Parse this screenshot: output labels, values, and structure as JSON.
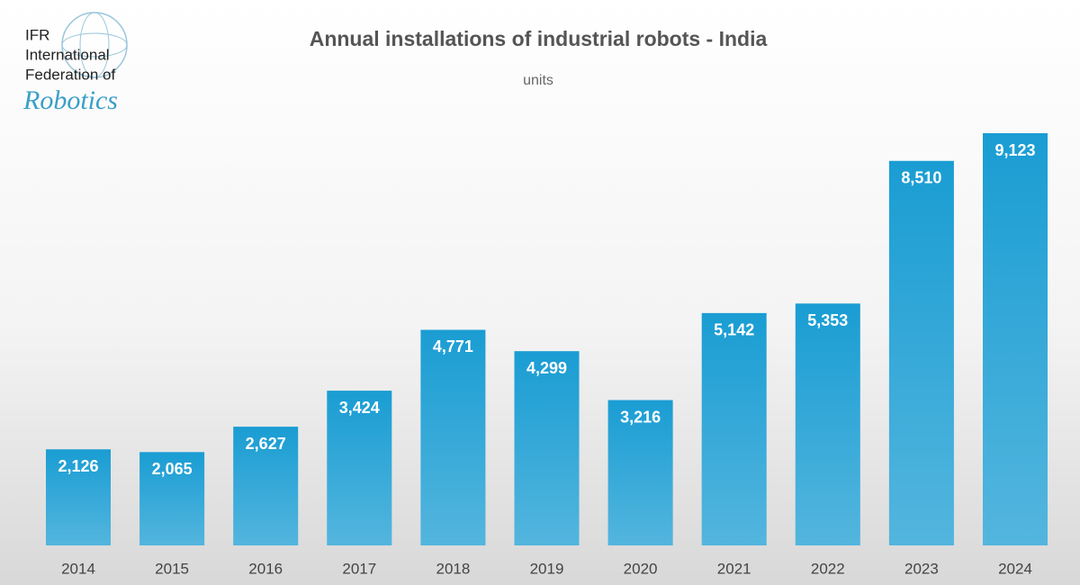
{
  "logo": {
    "lines": [
      "IFR",
      "International",
      "Federation of"
    ],
    "script": "Robotics"
  },
  "chart_data": {
    "type": "bar",
    "title": "Annual installations of industrial robots - India",
    "subtitle": "units",
    "categories": [
      "2014",
      "2015",
      "2016",
      "2017",
      "2018",
      "2019",
      "2020",
      "2021",
      "2022",
      "2023",
      "2024"
    ],
    "values": [
      2126,
      2065,
      2627,
      3424,
      4771,
      4299,
      3216,
      5142,
      5353,
      8510,
      9123
    ],
    "value_labels": [
      "2,126",
      "2,065",
      "2,627",
      "3,424",
      "4,771",
      "4,299",
      "3,216",
      "5,142",
      "5,353",
      "8,510",
      "9,123"
    ],
    "color": "#1a9dd3"
  }
}
